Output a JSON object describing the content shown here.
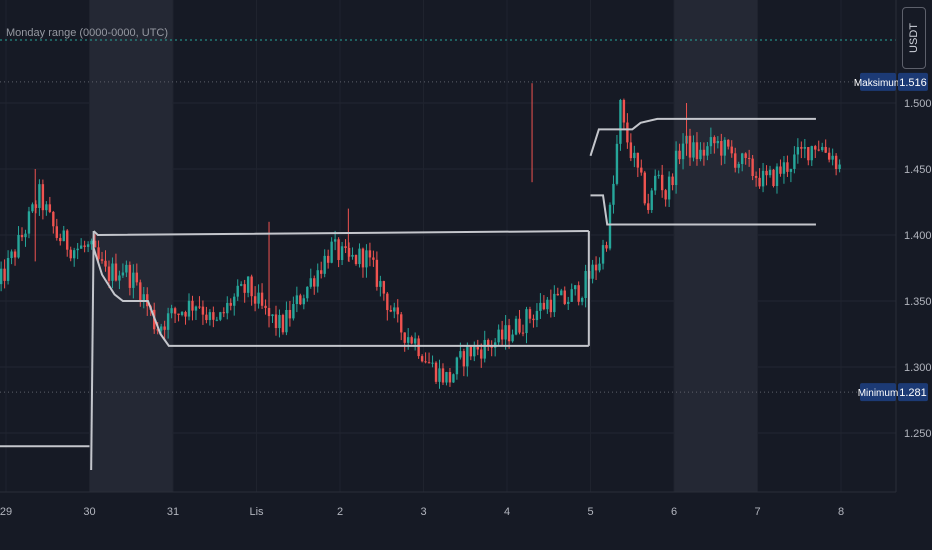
{
  "indicator": {
    "title": "Monday range (0000-0000, UTC)"
  },
  "currency": "USDT",
  "colors": {
    "up": "#26a69a",
    "down": "#ef5350",
    "range": "#c4c6cc",
    "label_bg": "#1c3a75"
  },
  "chart_data": {
    "type": "candlestick",
    "title": "Monday range (0000-0000, UTC)",
    "x_tick_labels": [
      "29",
      "30",
      "31",
      "Lis",
      "2",
      "3",
      "4",
      "5",
      "6",
      "7",
      "8"
    ],
    "y_ticks": [
      1.25,
      1.3,
      1.35,
      1.4,
      1.45,
      1.5
    ],
    "y_tick_labels": [
      "1.250",
      "1.300",
      "1.350",
      "1.400",
      "1.450",
      "1.500"
    ],
    "ylim": [
      1.222,
      1.548
    ],
    "markers": [
      {
        "label": "Maksimum",
        "value": 1.516,
        "value_label": "1.516"
      },
      {
        "label": "Minimum",
        "value": 1.281,
        "value_label": "1.281"
      }
    ],
    "highlighted_days": [
      "30",
      "6"
    ],
    "weekly_range": [
      {
        "period": "before 30",
        "low": 1.24,
        "high": 1.24
      },
      {
        "period": "30 - 6",
        "high": 1.403,
        "low": 1.316
      },
      {
        "period": "6 - 8",
        "high": 1.488,
        "low": 1.408
      }
    ],
    "price_path": [
      [
        28.9,
        1.36
      ],
      [
        29.2,
        1.4
      ],
      [
        29.4,
        1.43
      ],
      [
        29.6,
        1.4
      ],
      [
        29.8,
        1.39
      ],
      [
        30.0,
        1.39
      ],
      [
        30.2,
        1.37
      ],
      [
        30.4,
        1.375
      ],
      [
        30.6,
        1.36
      ],
      [
        30.8,
        1.33
      ],
      [
        31.0,
        1.34
      ],
      [
        31.3,
        1.35
      ],
      [
        31.5,
        1.33
      ],
      [
        31.7,
        1.35
      ],
      [
        31.9,
        1.36
      ],
      [
        32.1,
        1.34
      ],
      [
        32.3,
        1.33
      ],
      [
        32.5,
        1.35
      ],
      [
        32.7,
        1.37
      ],
      [
        32.9,
        1.39
      ],
      [
        33.1,
        1.38
      ],
      [
        33.3,
        1.385
      ],
      [
        33.5,
        1.36
      ],
      [
        33.7,
        1.33
      ],
      [
        33.9,
        1.32
      ],
      [
        34.1,
        1.3
      ],
      [
        34.3,
        1.29
      ],
      [
        34.5,
        1.31
      ],
      [
        34.7,
        1.315
      ],
      [
        34.9,
        1.32
      ],
      [
        35.1,
        1.33
      ],
      [
        35.3,
        1.34
      ],
      [
        35.5,
        1.35
      ],
      [
        35.7,
        1.35
      ],
      [
        35.9,
        1.36
      ],
      [
        36.1,
        1.38
      ],
      [
        36.2,
        1.4
      ],
      [
        36.3,
        1.45
      ],
      [
        36.35,
        1.5
      ],
      [
        36.4,
        1.48
      ],
      [
        36.5,
        1.46
      ],
      [
        36.6,
        1.44
      ],
      [
        36.7,
        1.42
      ],
      [
        36.8,
        1.45
      ],
      [
        36.9,
        1.43
      ],
      [
        37.0,
        1.45
      ],
      [
        37.1,
        1.47
      ],
      [
        37.3,
        1.46
      ],
      [
        37.5,
        1.47
      ],
      [
        37.7,
        1.46
      ],
      [
        37.9,
        1.45
      ],
      [
        38.1,
        1.44
      ],
      [
        38.3,
        1.45
      ],
      [
        38.5,
        1.46
      ],
      [
        38.7,
        1.47
      ],
      [
        38.9,
        1.46
      ],
      [
        39.0,
        1.45
      ]
    ]
  }
}
